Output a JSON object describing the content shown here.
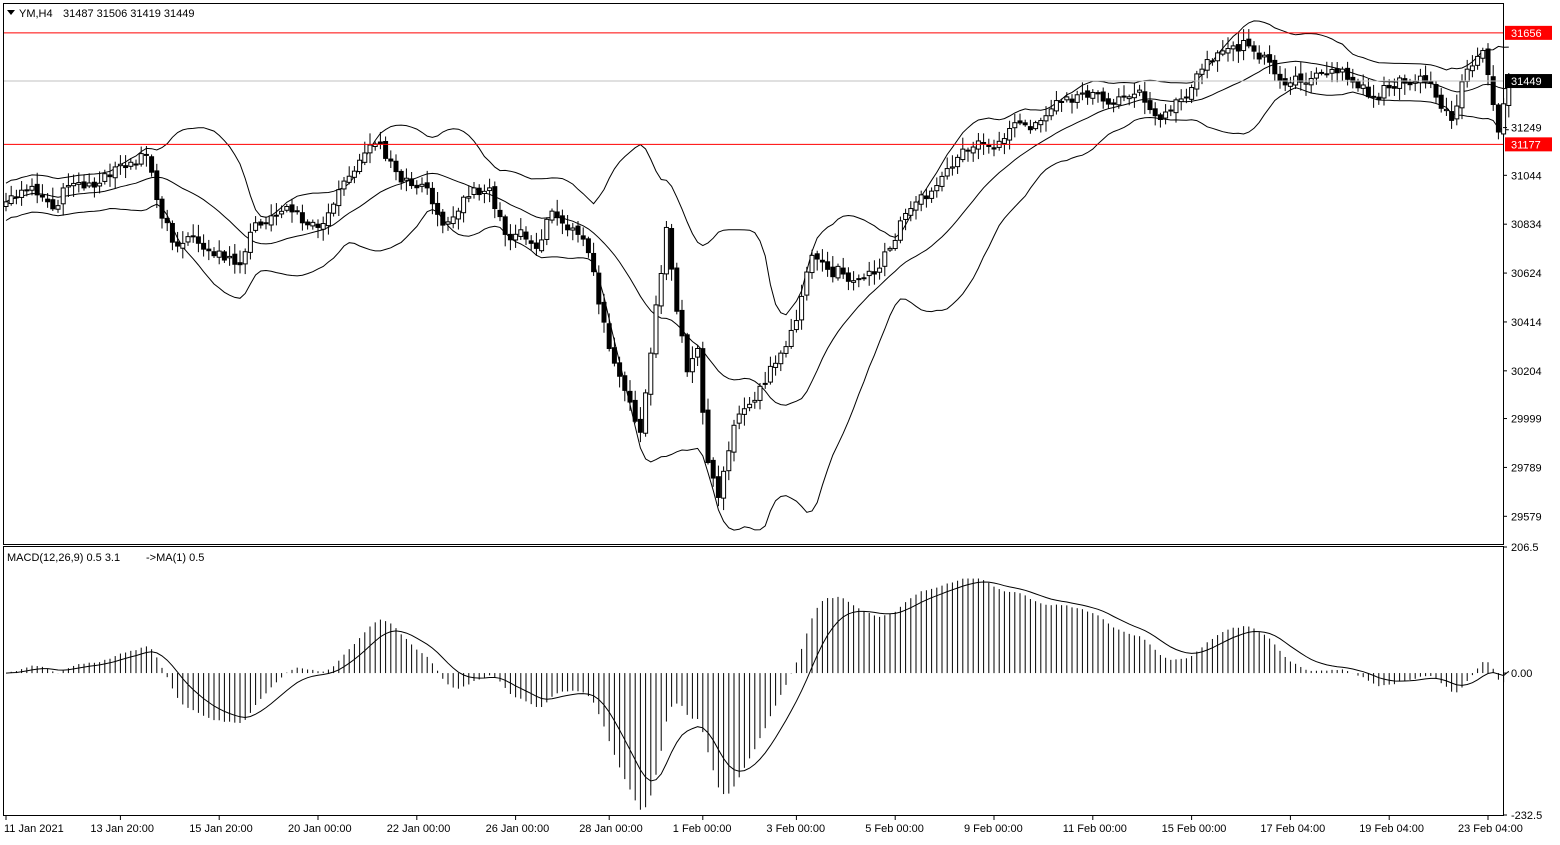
{
  "header": {
    "symbol": "YM,H4",
    "ohlc": "31487 31506 31419 31449",
    "macd_label": "MACD(12,26,9) 0.5 3.1",
    "macd_ma_label": "->MA(1) 0.5"
  },
  "colors": {
    "background": "#ffffff",
    "frame": "#000000",
    "candle": "#000000",
    "level_line": "#ff0000",
    "level_tag_bg": "#ff0000",
    "level_tag_text": "#ffffff",
    "bid_tag_bg": "#000000",
    "bid_tag_text": "#ffffff",
    "bid_line": "#c0c0c0",
    "histogram": "#000000",
    "signal_line": "#000000"
  },
  "chart_data": [
    {
      "type": "candlestick",
      "panel": "price",
      "symbol": "YM",
      "timeframe": "H4",
      "ylim": [
        29460,
        31780
      ],
      "y_ticks": [
        31249,
        31044,
        30834,
        30624,
        30414,
        30204,
        29999,
        29789,
        29579
      ],
      "levels": [
        {
          "name": "resistance",
          "value": 31656,
          "label": "31656"
        },
        {
          "name": "support",
          "value": 31177,
          "label": "31177"
        }
      ],
      "bid": {
        "value": 31449,
        "label": "31449"
      },
      "x_labels": [
        "11 Jan 2021",
        "13 Jan 20:00",
        "15 Jan 20:00",
        "20 Jan 00:00",
        "22 Jan 00:00",
        "26 Jan 00:00",
        "28 Jan 00:00",
        "1 Feb 00:00",
        "3 Feb 00:00",
        "5 Feb 00:00",
        "9 Feb 00:00",
        "11 Feb 00:00",
        "15 Feb 00:00",
        "17 Feb 04:00",
        "19 Feb 04:00",
        "23 Feb 04:00"
      ],
      "x_label_bars": [
        0,
        22,
        41,
        60,
        79,
        98,
        116,
        134,
        152,
        171,
        190,
        209,
        228,
        247,
        266,
        285
      ],
      "bollinger": {
        "period": 20,
        "deviations": 2
      },
      "close_anchors": [
        [
          0,
          30930
        ],
        [
          3,
          30980
        ],
        [
          6,
          30960
        ],
        [
          9,
          30900
        ],
        [
          12,
          31000
        ],
        [
          15,
          30990
        ],
        [
          18,
          31010
        ],
        [
          21,
          31080
        ],
        [
          24,
          31100
        ],
        [
          27,
          31130
        ],
        [
          29,
          30940
        ],
        [
          30,
          30860
        ],
        [
          33,
          30740
        ],
        [
          36,
          30780
        ],
        [
          39,
          30720
        ],
        [
          42,
          30680
        ],
        [
          45,
          30660
        ],
        [
          48,
          30840
        ],
        [
          51,
          30870
        ],
        [
          54,
          30910
        ],
        [
          57,
          30840
        ],
        [
          60,
          30820
        ],
        [
          63,
          30920
        ],
        [
          66,
          31040
        ],
        [
          69,
          31140
        ],
        [
          72,
          31180
        ],
        [
          75,
          31060
        ],
        [
          78,
          31000
        ],
        [
          81,
          30990
        ],
        [
          84,
          30830
        ],
        [
          87,
          30890
        ],
        [
          90,
          30990
        ],
        [
          93,
          30990
        ],
        [
          96,
          30790
        ],
        [
          99,
          30810
        ],
        [
          102,
          30730
        ],
        [
          105,
          30890
        ],
        [
          108,
          30810
        ],
        [
          111,
          30770
        ],
        [
          113,
          30630
        ],
        [
          116,
          30300
        ],
        [
          119,
          30120
        ],
        [
          122,
          29940
        ],
        [
          124,
          30280
        ],
        [
          127,
          30820
        ],
        [
          129,
          30460
        ],
        [
          131,
          30200
        ],
        [
          133,
          30300
        ],
        [
          135,
          29810
        ],
        [
          137,
          29660
        ],
        [
          140,
          29970
        ],
        [
          143,
          30060
        ],
        [
          146,
          30150
        ],
        [
          149,
          30280
        ],
        [
          152,
          30420
        ],
        [
          155,
          30700
        ],
        [
          158,
          30640
        ],
        [
          161,
          30620
        ],
        [
          164,
          30600
        ],
        [
          167,
          30620
        ],
        [
          170,
          30730
        ],
        [
          173,
          30880
        ],
        [
          176,
          30960
        ],
        [
          179,
          31000
        ],
        [
          182,
          31080
        ],
        [
          185,
          31150
        ],
        [
          188,
          31180
        ],
        [
          191,
          31190
        ],
        [
          194,
          31270
        ],
        [
          197,
          31240
        ],
        [
          200,
          31300
        ],
        [
          203,
          31360
        ],
        [
          206,
          31390
        ],
        [
          209,
          31400
        ],
        [
          212,
          31350
        ],
        [
          215,
          31380
        ],
        [
          218,
          31410
        ],
        [
          221,
          31300
        ],
        [
          224,
          31320
        ],
        [
          227,
          31380
        ],
        [
          230,
          31500
        ],
        [
          233,
          31570
        ],
        [
          236,
          31600
        ],
        [
          239,
          31600
        ],
        [
          242,
          31560
        ],
        [
          245,
          31450
        ],
        [
          248,
          31470
        ],
        [
          251,
          31460
        ],
        [
          254,
          31480
        ],
        [
          257,
          31500
        ],
        [
          260,
          31420
        ],
        [
          263,
          31380
        ],
        [
          266,
          31420
        ],
        [
          269,
          31440
        ],
        [
          272,
          31470
        ],
        [
          275,
          31380
        ],
        [
          278,
          31280
        ],
        [
          281,
          31500
        ],
        [
          284,
          31580
        ],
        [
          287,
          31230
        ],
        [
          289,
          31449
        ]
      ],
      "candles": "synthetic OHLC bars generated from close_anchors"
    },
    {
      "type": "macd",
      "panel": "indicator",
      "fast": 12,
      "slow": 26,
      "signal": 9,
      "macd_value": 0.5,
      "signal_value": 3.1,
      "ma_value": 0.5,
      "ylim": [
        -232.5,
        206.5
      ],
      "y_ticks": [
        206.5,
        0.0,
        -232.5
      ],
      "y_tick_labels": [
        "206.5",
        "0.00",
        "-232.5"
      ]
    }
  ]
}
